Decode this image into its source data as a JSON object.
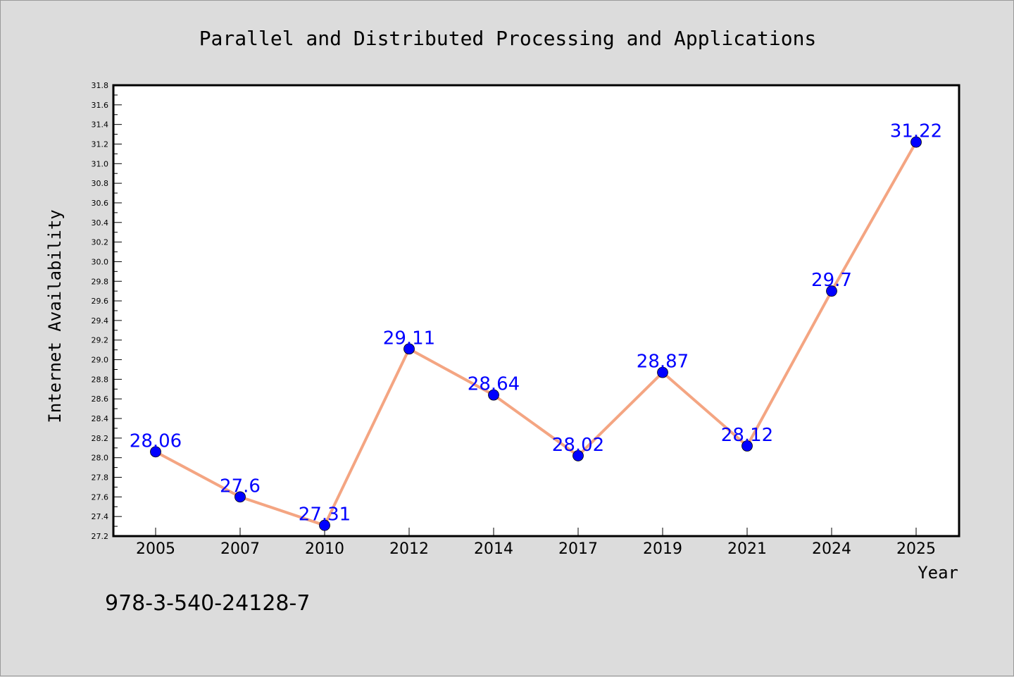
{
  "chart_data": {
    "type": "line",
    "title": "Parallel and Distributed Processing and Applications",
    "xlabel": "Year",
    "ylabel": "Internet Availability",
    "categories": [
      "2005",
      "2007",
      "2010",
      "2012",
      "2014",
      "2017",
      "2019",
      "2021",
      "2024",
      "2025"
    ],
    "series": [
      {
        "values": [
          28.06,
          27.6,
          27.31,
          29.11,
          28.64,
          28.02,
          28.87,
          28.12,
          29.7,
          31.22
        ]
      }
    ],
    "data_labels": [
      "28.06",
      "27.6",
      "27.31",
      "29.11",
      "28.64",
      "28.02",
      "28.87",
      "28.12",
      "29.7",
      "31.22"
    ],
    "ylim": [
      27.2,
      31.8
    ],
    "yticks": [
      "27.2",
      "27.4",
      "27.6",
      "27.8",
      "28.0",
      "28.2",
      "28.4",
      "28.6",
      "28.8",
      "29.0",
      "29.2",
      "29.4",
      "29.6",
      "29.8",
      "30.0",
      "30.2",
      "30.4",
      "30.6",
      "30.8",
      "31.0",
      "31.2",
      "31.4",
      "31.6",
      "31.8"
    ],
    "grid": false,
    "legend": "none",
    "line_color": "#f4a582",
    "marker_color": "#0000ff",
    "label_color": "#0000ff"
  },
  "footnote": "978-3-540-24128-7"
}
